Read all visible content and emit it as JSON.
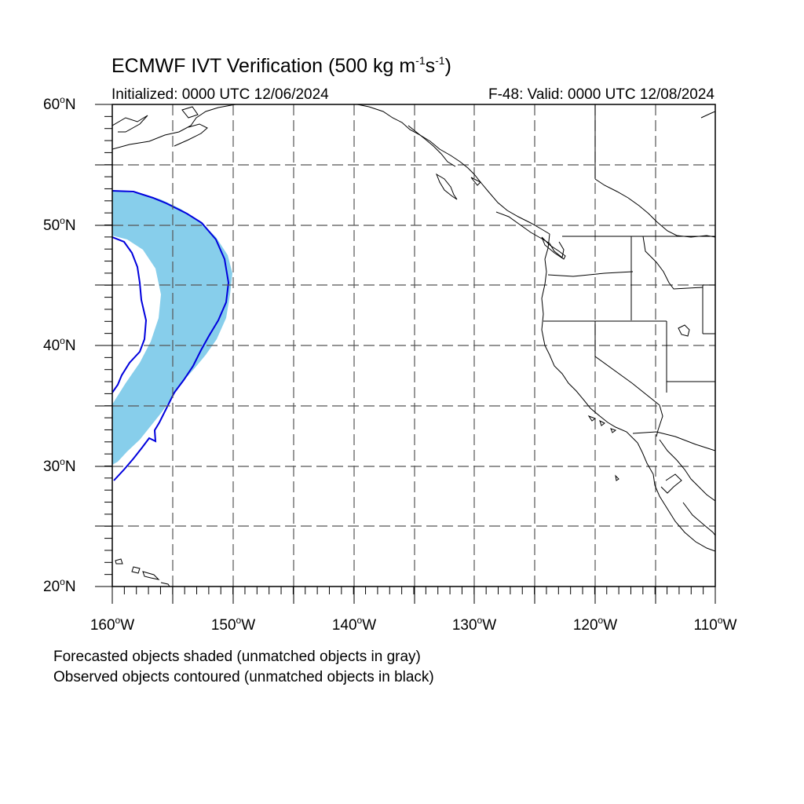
{
  "title": {
    "main": "ECMWF IVT Verification (500 kg m",
    "exp1": "-1",
    "mid": "s",
    "exp2": "-1",
    "close": ")"
  },
  "subtitle_left": "Initialized: 0000 UTC 12/06/2024",
  "subtitle_right": "F-48: Valid: 0000 UTC 12/08/2024",
  "lat_labels": [
    "60",
    "50",
    "40",
    "30",
    "20"
  ],
  "lat_suffix": "N",
  "lon_labels": [
    "160",
    "150",
    "140",
    "130",
    "120",
    "110"
  ],
  "lon_suffix": "W",
  "footnotes": [
    "Forecasted objects shaded (unmatched objects in gray)",
    "Observed objects contoured (unmatched objects in black)"
  ],
  "colors": {
    "forecast_fill": "#87ceeb",
    "observed_contour": "#0000dd",
    "coastline": "#000000",
    "grid": "#555555"
  },
  "map_extent": {
    "lon": [
      -160,
      -110
    ],
    "lat": [
      20,
      60
    ]
  }
}
